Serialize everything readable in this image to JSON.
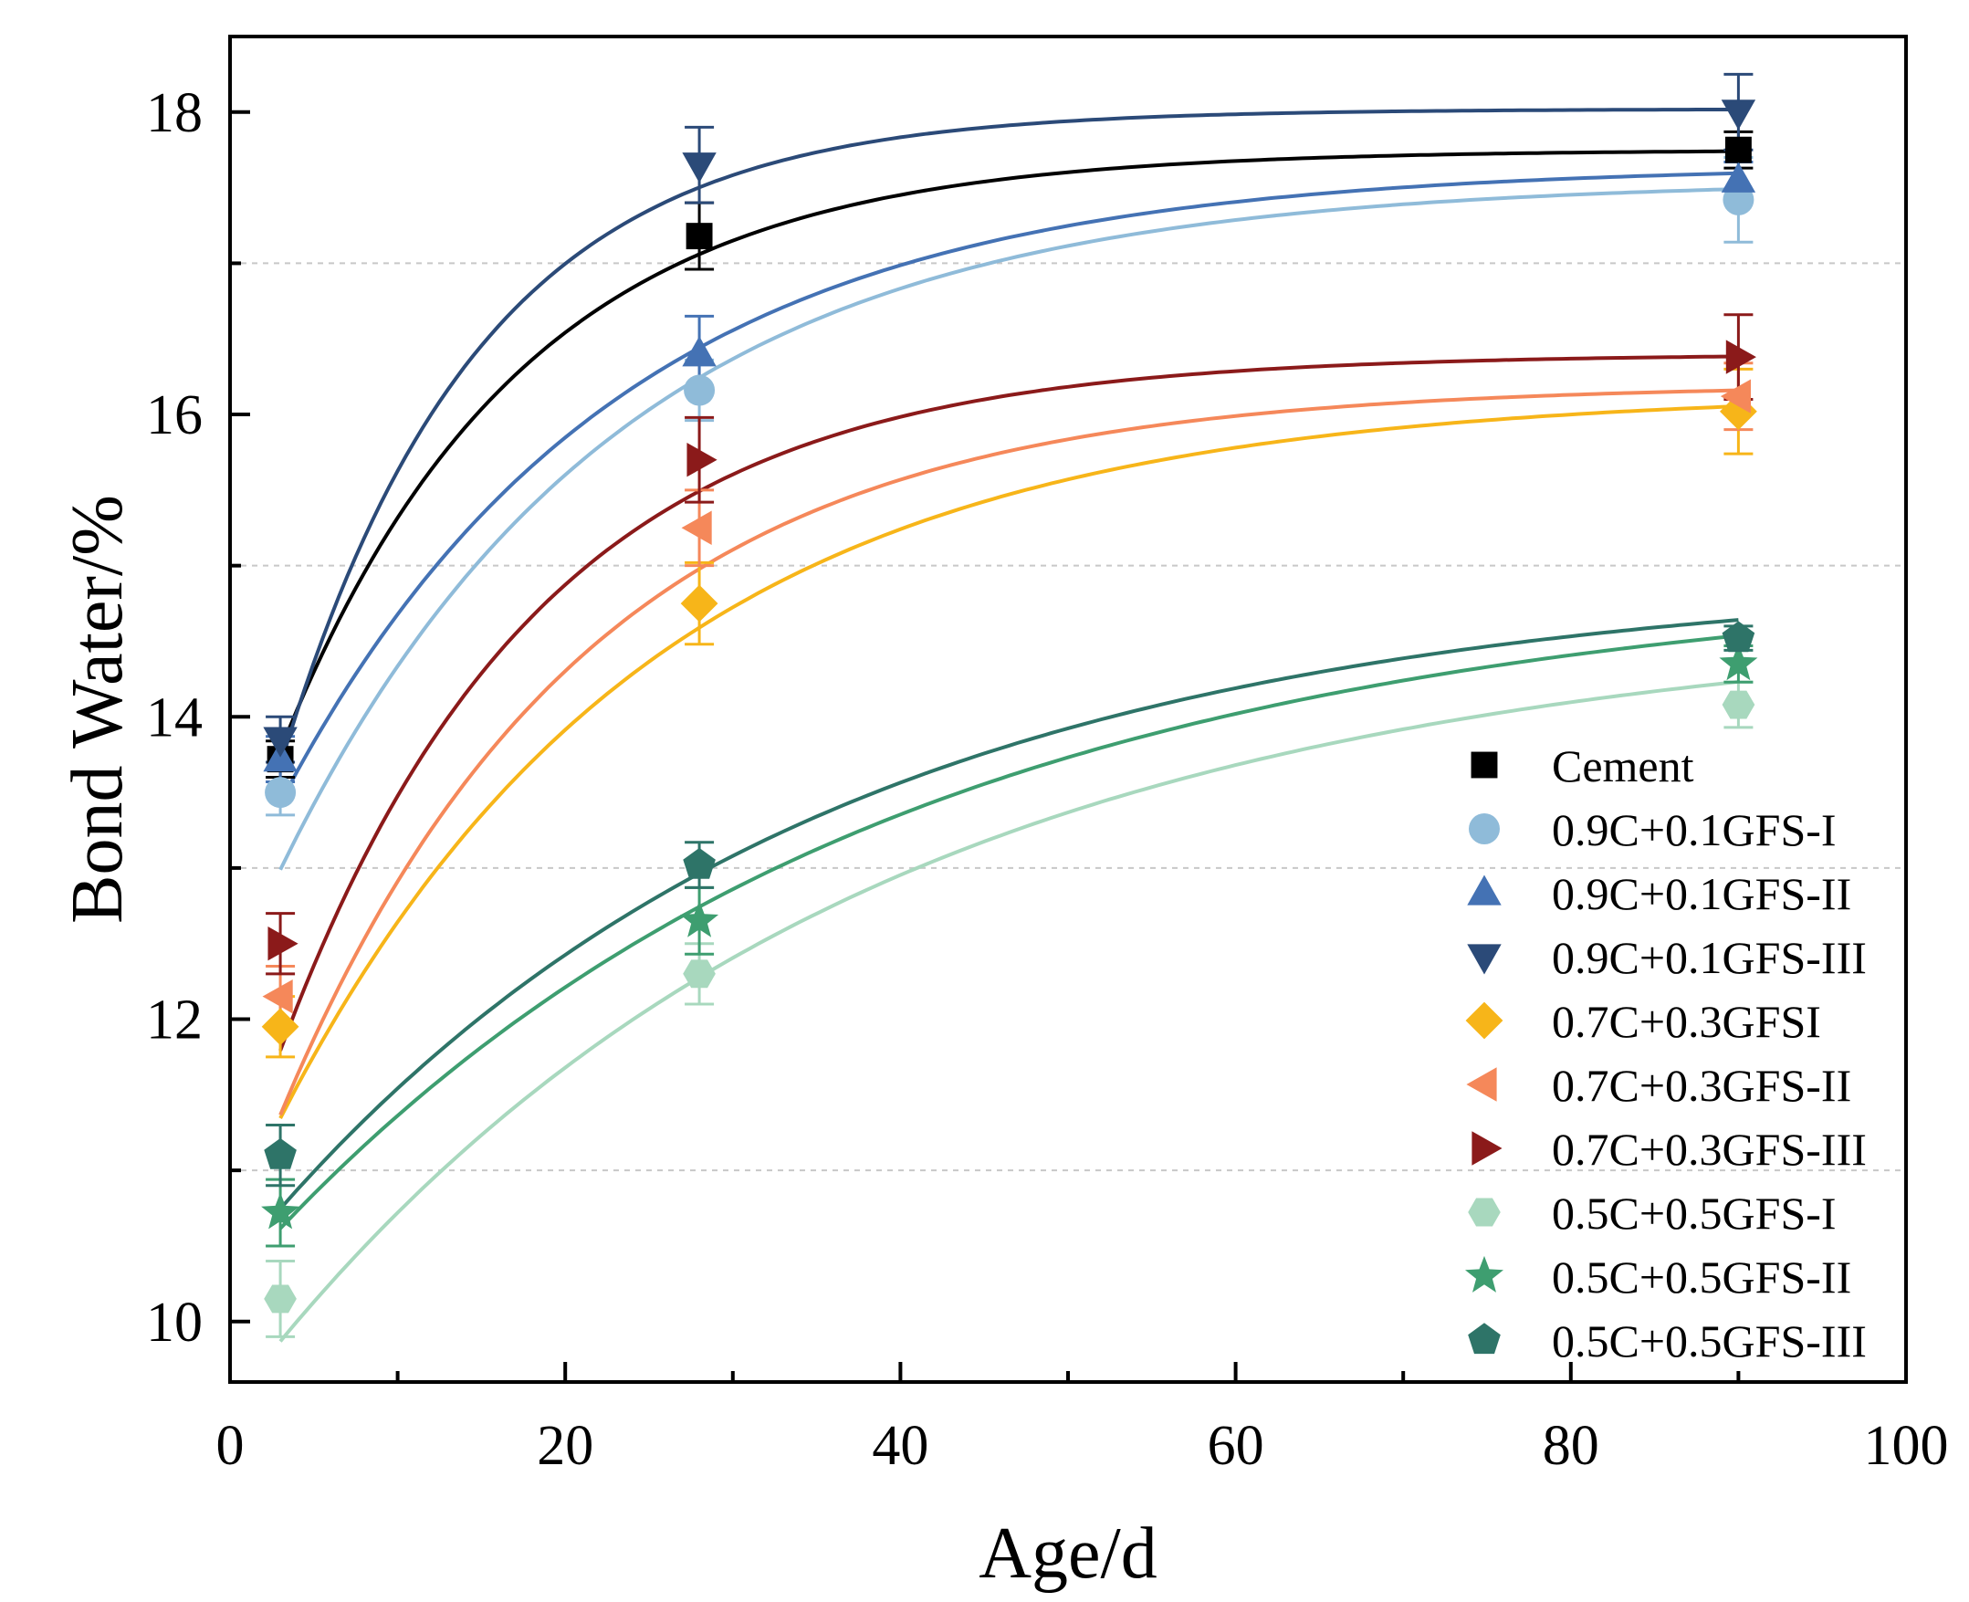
{
  "chart_data": {
    "type": "scatter",
    "title": "",
    "xlabel": "Age/d",
    "ylabel": "Bond Water/%",
    "xlim": [
      0,
      100
    ],
    "ylim": [
      9.6,
      18.5
    ],
    "x_ticks": [
      0,
      20,
      40,
      60,
      80,
      100
    ],
    "y_ticks": [
      10,
      12,
      14,
      16,
      18
    ],
    "gridlines_y": [
      11,
      13,
      15,
      17
    ],
    "legend_position": "bottom-right",
    "series": [
      {
        "name": "Cement",
        "color": "#000000",
        "marker": "square",
        "x": [
          3,
          28,
          90
        ],
        "y": [
          13.72,
          17.18,
          17.75
        ],
        "err": [
          0.12,
          0.22,
          0.12
        ],
        "fit": {
          "a": 17.75,
          "b": 4.9,
          "k": 0.07
        }
      },
      {
        "name": "0.9C+0.1GFS-I",
        "color": "#8FBBD9",
        "marker": "circle",
        "x": [
          3,
          28,
          90
        ],
        "y": [
          13.5,
          16.16,
          17.42
        ],
        "err": [
          0.15,
          0.2,
          0.28
        ],
        "fit": {
          "a": 17.55,
          "b": 5.3,
          "k": 0.05
        }
      },
      {
        "name": "0.9C+0.1GFS-II",
        "color": "#4472B4",
        "marker": "triangle-up",
        "x": [
          3,
          28,
          90
        ],
        "y": [
          13.72,
          16.4,
          17.55
        ],
        "err": [
          0.15,
          0.25,
          0.12
        ],
        "fit": {
          "a": 17.65,
          "b": 4.9,
          "k": 0.05
        }
      },
      {
        "name": "0.9C+0.1GFS-III",
        "color": "#2B4A78",
        "marker": "triangle-down",
        "x": [
          3,
          28,
          90
        ],
        "y": [
          13.85,
          17.65,
          18.0
        ],
        "err": [
          0.15,
          0.25,
          0.25
        ],
        "fit": {
          "a": 18.02,
          "b": 5.6,
          "k": 0.085
        }
      },
      {
        "name": "0.7C+0.3GFSI",
        "color": "#F7B519",
        "marker": "diamond",
        "x": [
          3,
          28,
          90
        ],
        "y": [
          11.95,
          14.75,
          16.02
        ],
        "err": [
          0.2,
          0.27,
          0.28
        ],
        "fit": {
          "a": 16.15,
          "b": 5.5,
          "k": 0.045
        }
      },
      {
        "name": "0.7C+0.3GFS-II",
        "color": "#F5885A",
        "marker": "triangle-left",
        "x": [
          3,
          28,
          90
        ],
        "y": [
          12.15,
          15.25,
          16.12
        ],
        "err": [
          0.2,
          0.25,
          0.22
        ],
        "fit": {
          "a": 16.2,
          "b": 5.7,
          "k": 0.055
        }
      },
      {
        "name": "0.7C+0.3GFS-III",
        "color": "#8B1A1A",
        "marker": "triangle-right",
        "x": [
          3,
          28,
          90
        ],
        "y": [
          12.5,
          15.7,
          16.38
        ],
        "err": [
          0.2,
          0.28,
          0.28
        ],
        "fit": {
          "a": 16.4,
          "b": 5.6,
          "k": 0.065
        }
      },
      {
        "name": "0.5C+0.5GFS-I",
        "color": "#A8D8BE",
        "marker": "hexagon",
        "x": [
          3,
          28,
          90
        ],
        "y": [
          10.15,
          12.3,
          14.08
        ],
        "err": [
          0.25,
          0.2,
          0.15
        ],
        "fit": {
          "a": 14.65,
          "b": 5.2,
          "k": 0.028
        }
      },
      {
        "name": "0.5C+0.5GFS-II",
        "color": "#3E9E70",
        "marker": "star",
        "x": [
          3,
          28,
          90
        ],
        "y": [
          10.72,
          12.65,
          14.35
        ],
        "err": [
          0.22,
          0.22,
          0.12
        ],
        "fit": {
          "a": 14.95,
          "b": 4.7,
          "k": 0.027
        }
      },
      {
        "name": "0.5C+0.5GFS-III",
        "color": "#2E7468",
        "marker": "pentagon",
        "x": [
          3,
          28,
          90
        ],
        "y": [
          11.1,
          13.02,
          14.52
        ],
        "err": [
          0.2,
          0.15,
          0.08
        ],
        "fit": {
          "a": 14.95,
          "b": 4.6,
          "k": 0.03
        }
      }
    ]
  }
}
